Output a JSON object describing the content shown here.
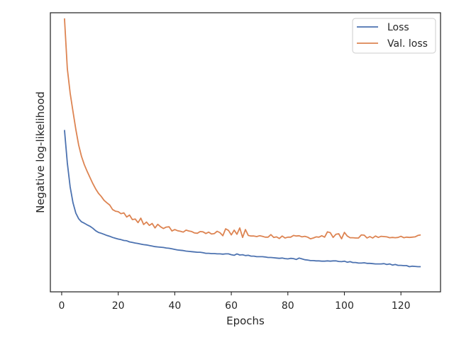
{
  "chart_data": {
    "type": "line",
    "title": "",
    "xlabel": "Epochs",
    "ylabel": "Negative log-likelihood",
    "xlim": [
      -4,
      134
    ],
    "ylim": [
      0,
      100
    ],
    "y_ticks_shown": false,
    "xticks": [
      0,
      20,
      40,
      60,
      80,
      100,
      120
    ],
    "xtick_labels": [
      "0",
      "20",
      "40",
      "60",
      "80",
      "100",
      "120"
    ],
    "grid": false,
    "legend_position": "top-right",
    "colors": {
      "Loss": "#4c72b0",
      "Val. loss": "#dd8452",
      "axis": "#262626"
    },
    "x": [
      1,
      2,
      3,
      4,
      5,
      6,
      7,
      8,
      9,
      10,
      11,
      12,
      13,
      14,
      15,
      16,
      17,
      18,
      19,
      20,
      21,
      22,
      23,
      24,
      25,
      26,
      27,
      28,
      29,
      30,
      31,
      32,
      33,
      34,
      35,
      36,
      37,
      38,
      39,
      40,
      41,
      42,
      43,
      44,
      45,
      46,
      47,
      48,
      49,
      50,
      51,
      52,
      53,
      54,
      55,
      56,
      57,
      58,
      59,
      60,
      61,
      62,
      63,
      64,
      65,
      66,
      67,
      68,
      69,
      70,
      71,
      72,
      73,
      74,
      75,
      76,
      77,
      78,
      79,
      80,
      81,
      82,
      83,
      84,
      85,
      86,
      87,
      88,
      89,
      90,
      91,
      92,
      93,
      94,
      95,
      96,
      97,
      98,
      99,
      100,
      101,
      102,
      103,
      104,
      105,
      106,
      107,
      108,
      109,
      110,
      111,
      112,
      113,
      114,
      115,
      116,
      117,
      118,
      119,
      120,
      121,
      122,
      123,
      124,
      125,
      126,
      127
    ],
    "series": [
      {
        "name": "Loss",
        "values": [
          58.0,
          46.2,
          37.6,
          31.9,
          28.2,
          26.2,
          25.1,
          24.6,
          24.0,
          23.5,
          22.8,
          21.9,
          21.3,
          21.0,
          20.6,
          20.2,
          19.9,
          19.5,
          19.2,
          18.9,
          18.7,
          18.4,
          18.3,
          17.9,
          17.7,
          17.5,
          17.3,
          17.1,
          16.9,
          16.8,
          16.6,
          16.4,
          16.2,
          16.1,
          16.0,
          15.9,
          15.7,
          15.6,
          15.4,
          15.2,
          15.0,
          14.9,
          14.8,
          14.6,
          14.5,
          14.4,
          14.3,
          14.2,
          14.2,
          14.0,
          13.8,
          13.8,
          13.7,
          13.7,
          13.6,
          13.6,
          13.5,
          13.6,
          13.6,
          13.3,
          13.1,
          13.6,
          13.2,
          13.3,
          13.0,
          13.1,
          12.8,
          12.8,
          12.6,
          12.6,
          12.6,
          12.5,
          12.3,
          12.3,
          12.2,
          12.1,
          12.0,
          12.1,
          11.9,
          11.8,
          12.0,
          11.9,
          11.6,
          12.1,
          11.8,
          11.5,
          11.4,
          11.2,
          11.2,
          11.1,
          11.1,
          11.0,
          11.0,
          11.1,
          11.0,
          11.1,
          11.1,
          10.9,
          10.8,
          11.0,
          10.6,
          10.8,
          10.5,
          10.5,
          10.3,
          10.3,
          10.4,
          10.2,
          10.2,
          10.1,
          10.0,
          10.0,
          10.0,
          10.1,
          9.8,
          10.0,
          9.6,
          9.8,
          9.5,
          9.5,
          9.4,
          9.4,
          9.0,
          9.2,
          9.1,
          9.0,
          9.0
        ]
      },
      {
        "name": "Val. loss",
        "values": [
          98.0,
          80.0,
          71.2,
          64.6,
          58.2,
          52.6,
          48.6,
          45.6,
          43.2,
          41.0,
          38.8,
          36.9,
          35.3,
          34.2,
          32.8,
          31.9,
          31.1,
          29.5,
          28.9,
          28.7,
          28.0,
          28.3,
          26.8,
          27.5,
          25.9,
          26.1,
          24.8,
          26.4,
          24.1,
          25.0,
          23.8,
          24.5,
          22.9,
          24.2,
          23.3,
          22.7,
          23.2,
          23.3,
          21.8,
          22.3,
          21.9,
          21.7,
          21.4,
          22.1,
          21.8,
          21.6,
          21.1,
          21.0,
          21.6,
          21.5,
          20.9,
          21.4,
          20.7,
          20.9,
          21.7,
          21.2,
          20.1,
          22.6,
          22.0,
          20.4,
          22.1,
          20.6,
          22.9,
          19.5,
          22.3,
          20.2,
          20.0,
          20.0,
          19.8,
          20.1,
          19.9,
          19.6,
          19.6,
          20.5,
          19.5,
          19.7,
          19.1,
          20.0,
          19.3,
          19.6,
          19.6,
          20.2,
          20.0,
          20.1,
          19.7,
          19.9,
          19.6,
          19.0,
          19.3,
          19.7,
          19.6,
          20.1,
          19.6,
          21.5,
          21.2,
          19.5,
          20.6,
          20.8,
          19.0,
          21.3,
          20.0,
          19.4,
          19.4,
          19.3,
          19.3,
          20.4,
          20.3,
          19.3,
          19.8,
          19.3,
          20.0,
          19.5,
          19.9,
          19.8,
          19.7,
          19.4,
          19.5,
          19.4,
          19.5,
          19.9,
          19.4,
          19.6,
          19.5,
          19.6,
          19.7,
          20.2,
          20.4
        ]
      }
    ]
  }
}
